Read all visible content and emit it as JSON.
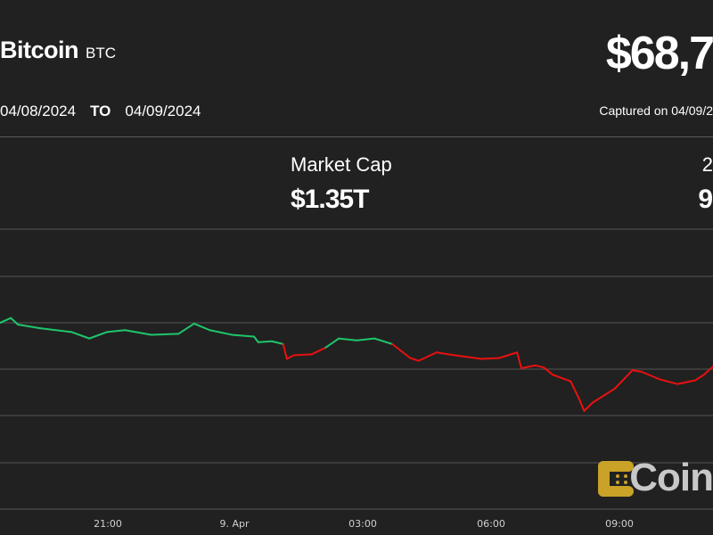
{
  "header": {
    "coin_name": "Bitcoin",
    "coin_symbol": "BTC",
    "price": "$68,7",
    "date_from": "04/08/2024",
    "date_to_label": "TO",
    "date_to": "04/09/2024",
    "captured": "Captured on 04/09/2"
  },
  "stats": {
    "market_cap_label": "Market Cap",
    "market_cap_value": "$1.35T",
    "right_stat_label_partial": "2",
    "right_stat_value_partial": "9"
  },
  "logo": {
    "text": "Coin",
    "color": "#c9a227"
  },
  "chart_data": {
    "type": "line",
    "xlabel": "",
    "ylabel": "",
    "grid": true,
    "x_ticks": [
      "21:00",
      "9. Apr",
      "03:00",
      "06:00",
      "09:00"
    ],
    "colors": {
      "up": "#1ec66b",
      "down": "#e8110f"
    },
    "reference_price": 68980,
    "x": [
      "18:29",
      "18:44",
      "18:54",
      "19:25",
      "20:09",
      "20:34",
      "20:59",
      "21:24",
      "22:01",
      "22:39",
      "23:01",
      "23:23",
      "23:54",
      "00:25",
      "00:31",
      "00:50",
      "01:06",
      "01:11",
      "01:21",
      "01:46",
      "02:05",
      "02:24",
      "02:49",
      "03:14",
      "03:39",
      "04:04",
      "04:16",
      "04:41",
      "05:06",
      "05:44",
      "06:09",
      "06:34",
      "06:40",
      "06:59",
      "07:11",
      "07:24",
      "07:49",
      "08:01",
      "08:08",
      "08:20",
      "08:51",
      "09:16",
      "09:29",
      "09:54",
      "10:19",
      "10:44",
      "10:56",
      "11:09"
    ],
    "y": [
      69200,
      69250,
      69180,
      69140,
      69100,
      69030,
      69100,
      69120,
      69070,
      69080,
      69190,
      69120,
      69070,
      69050,
      68990,
      69000,
      68970,
      68810,
      68850,
      68860,
      68930,
      69030,
      69010,
      69030,
      68970,
      68820,
      68790,
      68880,
      68850,
      68810,
      68820,
      68880,
      68710,
      68740,
      68720,
      68640,
      68570,
      68380,
      68250,
      68340,
      68490,
      68690,
      68670,
      68590,
      68540,
      68580,
      68640,
      68730
    ]
  }
}
